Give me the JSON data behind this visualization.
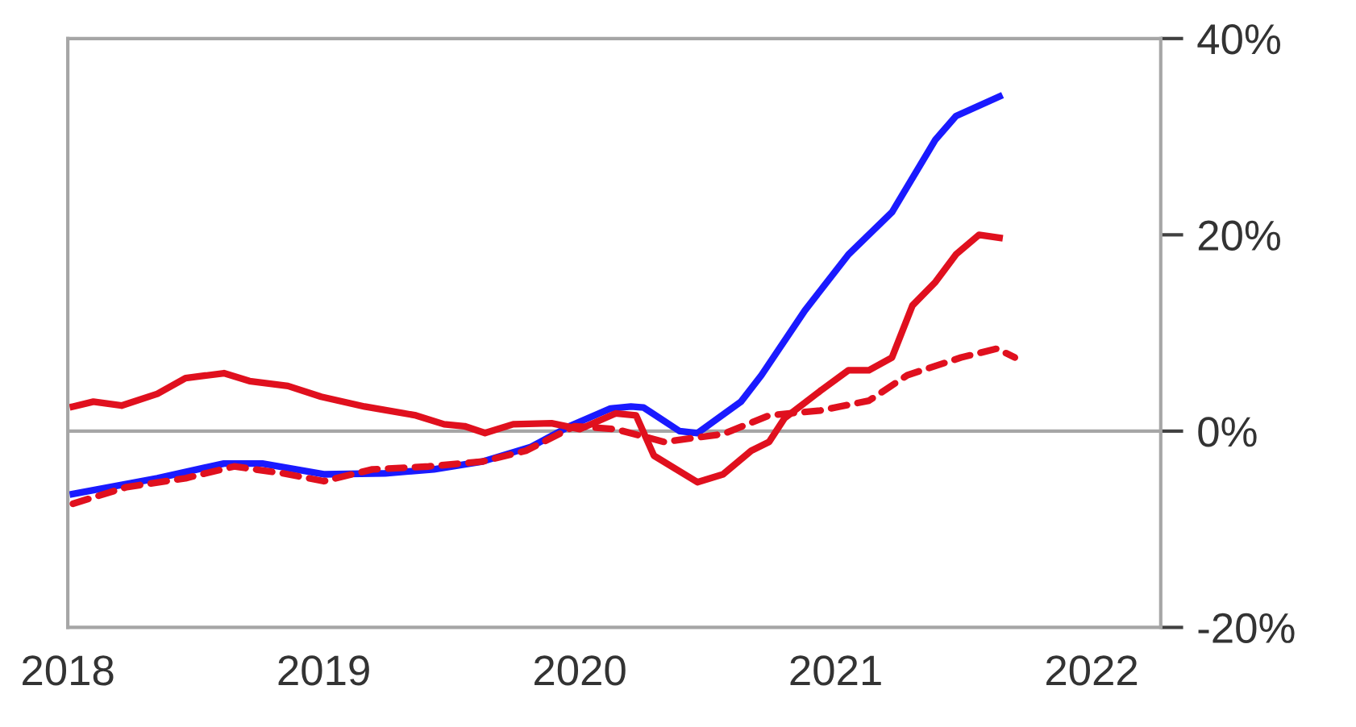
{
  "chart_data": {
    "type": "line",
    "series": [
      {
        "color": "#1a1aff",
        "line_style": "solid",
        "x": [
          2018.02,
          2018.35,
          2018.61,
          2018.76,
          2019.0,
          2019.24,
          2019.43,
          2019.62,
          2019.81,
          2019.96,
          2020.12,
          2020.2,
          2020.25,
          2020.39,
          2020.46,
          2020.63,
          2020.71,
          2020.88,
          2021.05,
          2021.22,
          2021.39,
          2021.47,
          2021.64
        ],
        "values": [
          -6.4,
          -4.8,
          -3.3,
          -3.3,
          -4.4,
          -4.3,
          -3.9,
          -3.1,
          -1.6,
          0.5,
          2.3,
          2.5,
          2.4,
          0,
          -0.2,
          3.0,
          5.7,
          12.3,
          18,
          22.3,
          29.7,
          32.1,
          34.1
        ]
      },
      {
        "color": "#e0101e",
        "line_style": "solid",
        "x": [
          2018.02,
          2018.1,
          2018.21,
          2018.35,
          2018.46,
          2018.61,
          2018.71,
          2018.86,
          2018.99,
          2019.16,
          2019.36,
          2019.47,
          2019.55,
          2019.63,
          2019.74,
          2019.89,
          2020.0,
          2020.14,
          2020.22,
          2020.29,
          2020.46,
          2020.56,
          2020.67,
          2020.74,
          2020.8,
          2020.94,
          2021.05,
          2021.13,
          2021.22,
          2021.3,
          2021.39,
          2021.47,
          2021.56,
          2021.64
        ],
        "values": [
          2.5,
          3.0,
          2.6,
          3.8,
          5.4,
          5.9,
          5.1,
          4.6,
          3.5,
          2.5,
          1.6,
          0.7,
          0.5,
          -0.2,
          0.7,
          0.8,
          0.2,
          1.8,
          1.6,
          -2.5,
          -5.2,
          -4.4,
          -2.0,
          -1.1,
          1.3,
          4.1,
          6.2,
          6.2,
          7.5,
          12.8,
          15.2,
          18,
          20,
          19.7
        ]
      },
      {
        "color": "#e0101e",
        "line_style": "dashed",
        "x": [
          2018.02,
          2018.23,
          2018.46,
          2018.65,
          2018.84,
          2019.0,
          2019.19,
          2019.41,
          2019.62,
          2019.79,
          2019.98,
          2020.14,
          2020.33,
          2020.56,
          2020.74,
          2020.94,
          2021.13,
          2021.28,
          2021.49,
          2021.63,
          2021.7
        ],
        "values": [
          -7.4,
          -5.7,
          -4.8,
          -3.6,
          -4.3,
          -5.1,
          -3.9,
          -3.6,
          -3.1,
          -2.0,
          0.5,
          0.2,
          -1.1,
          -0.3,
          1.6,
          2.1,
          3.1,
          5.7,
          7.5,
          8.4,
          7.5
        ]
      }
    ],
    "xlim": [
      2018,
      2022.27
    ],
    "xticks": [
      2018,
      2019,
      2020,
      2021,
      2022
    ],
    "ylim": [
      -20,
      40
    ],
    "yticks": [
      {
        "value": -20,
        "label": "-20%"
      },
      {
        "value": 0,
        "label": "0%"
      },
      {
        "value": 20,
        "label": "20%"
      },
      {
        "value": 40,
        "label": "40%"
      }
    ],
    "ref_lines": [
      {
        "axis": "y",
        "value": 0,
        "color": "#a6a6a6"
      }
    ],
    "grid": false,
    "legend": false
  }
}
